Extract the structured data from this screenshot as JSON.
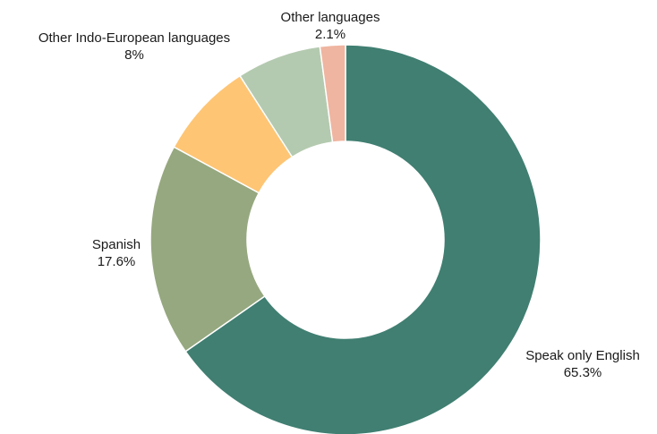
{
  "chart_data": {
    "type": "pie",
    "donut": true,
    "title": "",
    "legend": "none",
    "slices": [
      {
        "name": "Speak only English",
        "value": 65.3,
        "value_label": "65.3%",
        "color": "#407F72"
      },
      {
        "name": "Spanish",
        "value": 17.6,
        "value_label": "17.6%",
        "color": "#96A87F"
      },
      {
        "name": "Other Indo-European languages",
        "value": 8.0,
        "value_label": "8%",
        "color": "#FEC574"
      },
      {
        "name": "Other languages",
        "value": 7.0,
        "value_label": "",
        "color": "#B4CAB0"
      },
      {
        "name": "Other languages",
        "value": 2.1,
        "value_label": "2.1%",
        "color": "#EFB5A0"
      }
    ]
  }
}
